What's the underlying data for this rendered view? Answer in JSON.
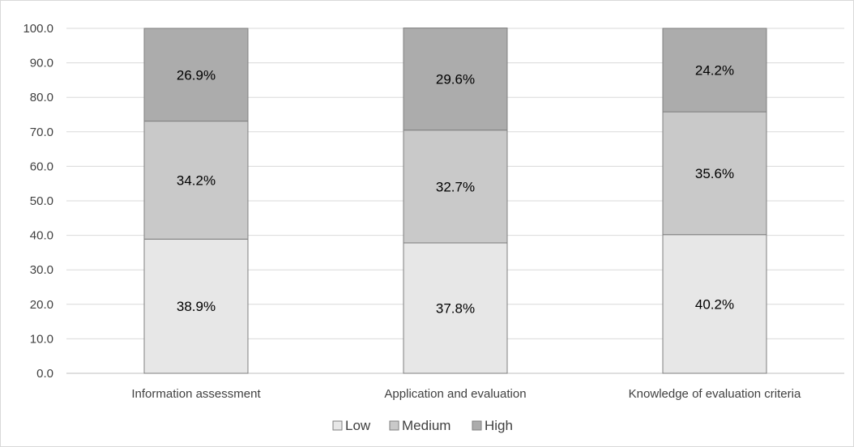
{
  "chart_data": {
    "type": "bar",
    "stacked": true,
    "categories": [
      "Information assessment",
      "Application and evaluation",
      "Knowledge of evaluation criteria"
    ],
    "series": [
      {
        "name": "Low",
        "values": [
          38.9,
          37.8,
          40.2
        ],
        "labels": [
          "38.9%",
          "37.8%",
          "40.2%"
        ],
        "color": "#e7e7e7"
      },
      {
        "name": "Medium",
        "values": [
          34.2,
          32.7,
          35.6
        ],
        "labels": [
          "34.2%",
          "32.7%",
          "35.6%"
        ],
        "color": "#c9c9c9"
      },
      {
        "name": "High",
        "values": [
          26.9,
          29.6,
          24.2
        ],
        "labels": [
          "26.9%",
          "29.6%",
          "24.2%"
        ],
        "color": "#acacac"
      }
    ],
    "title": "",
    "xlabel": "",
    "ylabel": "",
    "ylim": [
      0,
      100
    ],
    "yticks": [
      "0.0",
      "10.0",
      "20.0",
      "30.0",
      "40.0",
      "50.0",
      "60.0",
      "70.0",
      "80.0",
      "90.0",
      "100.0"
    ],
    "grid": true,
    "legend_position": "bottom"
  }
}
